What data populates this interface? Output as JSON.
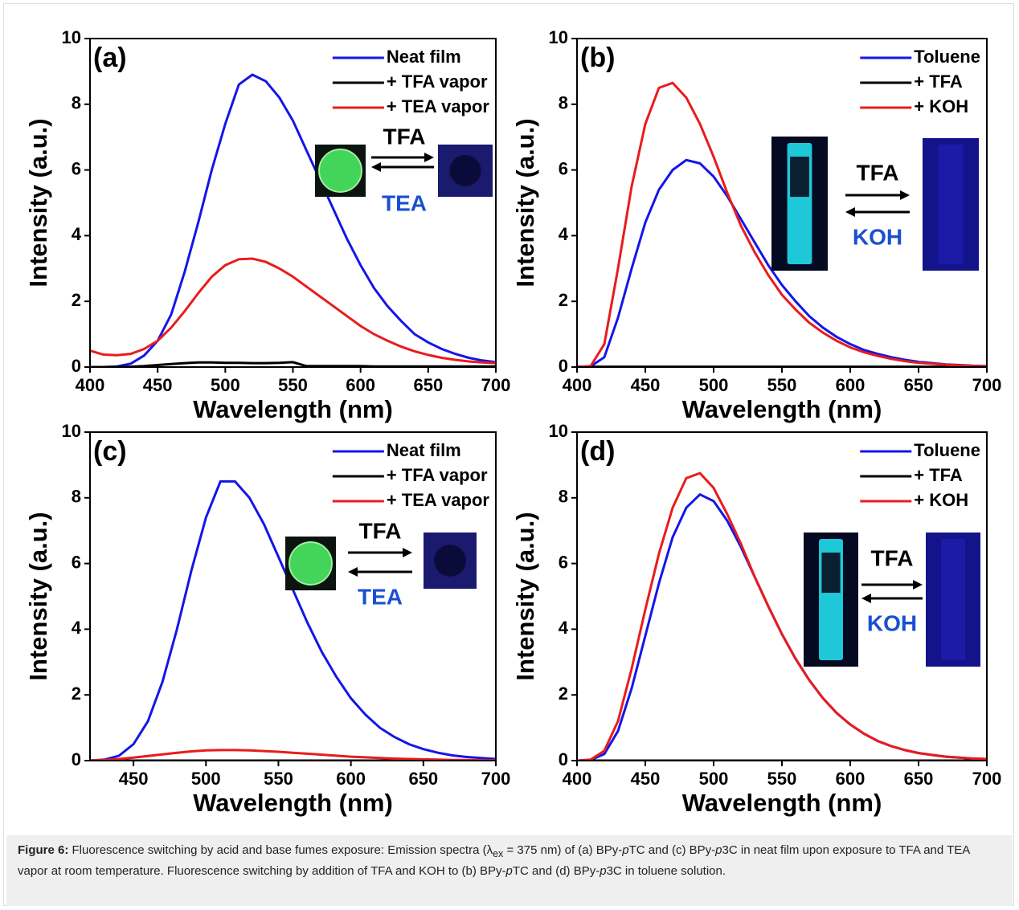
{
  "chart_data": [
    {
      "type": "line",
      "panel_label": "(a)",
      "xlabel": "Wavelength (nm)",
      "ylabel": "Intensity (a.u.)",
      "xlim": [
        400,
        700
      ],
      "xticks": [
        400,
        450,
        500,
        550,
        600,
        650,
        700
      ],
      "ylim": [
        0,
        10
      ],
      "yticks": [
        0,
        2,
        4,
        6,
        8,
        10
      ],
      "legend": "upper right",
      "annotations": [
        "TFA",
        "TEA"
      ],
      "x": [
        400,
        410,
        420,
        430,
        440,
        450,
        460,
        470,
        480,
        490,
        500,
        510,
        520,
        530,
        540,
        550,
        560,
        570,
        580,
        590,
        600,
        610,
        620,
        630,
        640,
        650,
        660,
        670,
        680,
        690,
        700
      ],
      "series": [
        {
          "name": "Neat film",
          "color": "#1515e8",
          "values": [
            0,
            0,
            0.02,
            0.1,
            0.35,
            0.8,
            1.6,
            2.9,
            4.4,
            6.0,
            7.4,
            8.6,
            8.9,
            8.7,
            8.2,
            7.5,
            6.6,
            5.7,
            4.8,
            3.9,
            3.1,
            2.4,
            1.85,
            1.4,
            1.0,
            0.75,
            0.55,
            0.4,
            0.28,
            0.2,
            0.15
          ]
        },
        {
          "name": "+ TFA vapor",
          "color": "#000000",
          "values": [
            0,
            0,
            0,
            0.01,
            0.03,
            0.06,
            0.09,
            0.12,
            0.14,
            0.14,
            0.13,
            0.13,
            0.12,
            0.12,
            0.13,
            0.15,
            0.03,
            0.03,
            0.03,
            0.03,
            0.03,
            0.02,
            0.02,
            0.02,
            0.02,
            0.02,
            0.02,
            0.02,
            0.02,
            0.02,
            0.02
          ]
        },
        {
          "name": "+ TEA vapor",
          "color": "#e81c1c",
          "values": [
            0.5,
            0.38,
            0.36,
            0.4,
            0.55,
            0.8,
            1.2,
            1.7,
            2.25,
            2.75,
            3.1,
            3.28,
            3.3,
            3.2,
            3.0,
            2.75,
            2.45,
            2.15,
            1.85,
            1.55,
            1.25,
            1.0,
            0.8,
            0.62,
            0.48,
            0.37,
            0.28,
            0.22,
            0.17,
            0.14,
            0.12
          ]
        }
      ]
    },
    {
      "type": "line",
      "panel_label": "(b)",
      "xlabel": "Wavelength (nm)",
      "ylabel": "Intensity (a.u.)",
      "xlim": [
        400,
        700
      ],
      "xticks": [
        400,
        450,
        500,
        550,
        600,
        650,
        700
      ],
      "ylim": [
        0,
        10
      ],
      "yticks": [
        0,
        2,
        4,
        6,
        8,
        10
      ],
      "legend": "upper right",
      "annotations": [
        "TFA",
        "KOH"
      ],
      "x": [
        400,
        410,
        420,
        430,
        440,
        450,
        460,
        470,
        480,
        490,
        500,
        510,
        520,
        530,
        540,
        550,
        560,
        570,
        580,
        590,
        600,
        610,
        620,
        630,
        640,
        650,
        660,
        670,
        680,
        690,
        700
      ],
      "series": [
        {
          "name": "Toluene",
          "color": "#1515e8",
          "values": [
            0,
            0.02,
            0.3,
            1.5,
            3.0,
            4.4,
            5.4,
            6.0,
            6.3,
            6.2,
            5.8,
            5.2,
            4.5,
            3.8,
            3.1,
            2.5,
            2.0,
            1.55,
            1.2,
            0.92,
            0.7,
            0.52,
            0.4,
            0.3,
            0.22,
            0.16,
            0.12,
            0.08,
            0.06,
            0.04,
            0.03
          ]
        },
        {
          "name": "+ TFA",
          "color": "#000000",
          "values": [
            0.01,
            0.01,
            0.01,
            0.01,
            0.01,
            0.01,
            0.01,
            0.01,
            0.01,
            0.01,
            0.01,
            0.01,
            0.01,
            0.01,
            0.01,
            0.01,
            0.01,
            0.01,
            0.01,
            0.01,
            0.01,
            0.01,
            0.01,
            0.01,
            0.01,
            0.01,
            0.01,
            0.01,
            0.01,
            0.01,
            0.01
          ]
        },
        {
          "name": "+ KOH",
          "color": "#e81c1c",
          "values": [
            0,
            0.03,
            0.7,
            3.0,
            5.5,
            7.4,
            8.5,
            8.65,
            8.2,
            7.4,
            6.4,
            5.3,
            4.3,
            3.5,
            2.8,
            2.2,
            1.75,
            1.35,
            1.05,
            0.8,
            0.6,
            0.45,
            0.34,
            0.25,
            0.18,
            0.13,
            0.1,
            0.07,
            0.05,
            0.03,
            0.02
          ]
        }
      ]
    },
    {
      "type": "line",
      "panel_label": "(c)",
      "xlabel": "Wavelength (nm)",
      "ylabel": "Intensity (a.u.)",
      "xlim": [
        420,
        700
      ],
      "xticks": [
        450,
        500,
        550,
        600,
        650,
        700
      ],
      "ylim": [
        0,
        10
      ],
      "yticks": [
        0,
        2,
        4,
        6,
        8,
        10
      ],
      "legend": "upper right",
      "annotations": [
        "TFA",
        "TEA"
      ],
      "x": [
        420,
        430,
        440,
        450,
        460,
        470,
        480,
        490,
        500,
        510,
        520,
        530,
        540,
        550,
        560,
        570,
        580,
        590,
        600,
        610,
        620,
        630,
        640,
        650,
        660,
        670,
        680,
        690,
        700
      ],
      "series": [
        {
          "name": "Neat film",
          "color": "#1515e8",
          "values": [
            0,
            0.03,
            0.15,
            0.5,
            1.2,
            2.4,
            4.0,
            5.8,
            7.4,
            8.5,
            8.5,
            8.0,
            7.2,
            6.2,
            5.2,
            4.2,
            3.3,
            2.55,
            1.9,
            1.4,
            1.0,
            0.72,
            0.5,
            0.35,
            0.24,
            0.16,
            0.11,
            0.08,
            0.05
          ]
        },
        {
          "name": "+ TFA vapor",
          "color": "#000000",
          "values": [
            0,
            0,
            0,
            0,
            0,
            0,
            0,
            0,
            0,
            0,
            0,
            0,
            0,
            0,
            0,
            0,
            0,
            0,
            0,
            0,
            0,
            0,
            0,
            0,
            0,
            0,
            0,
            0,
            0
          ]
        },
        {
          "name": "+ TEA vapor",
          "color": "#e81c1c",
          "values": [
            0.01,
            0.02,
            0.05,
            0.09,
            0.14,
            0.19,
            0.24,
            0.28,
            0.31,
            0.32,
            0.32,
            0.31,
            0.29,
            0.27,
            0.24,
            0.21,
            0.18,
            0.15,
            0.12,
            0.1,
            0.08,
            0.06,
            0.05,
            0.04,
            0.03,
            0.02,
            0.02,
            0.01,
            0.01
          ]
        }
      ]
    },
    {
      "type": "line",
      "panel_label": "(d)",
      "xlabel": "Wavelength (nm)",
      "ylabel": "Intensity (a.u.)",
      "xlim": [
        400,
        700
      ],
      "xticks": [
        400,
        450,
        500,
        550,
        600,
        650,
        700
      ],
      "ylim": [
        0,
        10
      ],
      "yticks": [
        0,
        2,
        4,
        6,
        8,
        10
      ],
      "legend": "upper right",
      "annotations": [
        "TFA",
        "KOH"
      ],
      "x": [
        400,
        410,
        420,
        430,
        440,
        450,
        460,
        470,
        480,
        490,
        500,
        510,
        520,
        530,
        540,
        550,
        560,
        570,
        580,
        590,
        600,
        610,
        620,
        630,
        640,
        650,
        660,
        670,
        680,
        690,
        700
      ],
      "series": [
        {
          "name": "Toluene",
          "color": "#1515e8",
          "values": [
            0,
            0.02,
            0.2,
            0.9,
            2.2,
            3.8,
            5.4,
            6.8,
            7.7,
            8.1,
            7.9,
            7.3,
            6.5,
            5.6,
            4.7,
            3.85,
            3.1,
            2.45,
            1.9,
            1.45,
            1.1,
            0.82,
            0.6,
            0.44,
            0.32,
            0.23,
            0.17,
            0.12,
            0.09,
            0.06,
            0.05
          ]
        },
        {
          "name": "+ TFA",
          "color": "#000000",
          "values": [
            0,
            0,
            0,
            0,
            0,
            0,
            0,
            0,
            0,
            0,
            0,
            0,
            0,
            0,
            0,
            0,
            0,
            0,
            0,
            0,
            0,
            0,
            0,
            0,
            0,
            0,
            0,
            0,
            0,
            0,
            0
          ]
        },
        {
          "name": "+ KOH",
          "color": "#e81c1c",
          "values": [
            0,
            0.03,
            0.3,
            1.2,
            2.8,
            4.6,
            6.3,
            7.7,
            8.6,
            8.75,
            8.3,
            7.5,
            6.6,
            5.6,
            4.7,
            3.85,
            3.1,
            2.45,
            1.9,
            1.45,
            1.1,
            0.82,
            0.6,
            0.44,
            0.32,
            0.23,
            0.17,
            0.12,
            0.09,
            0.06,
            0.05
          ]
        }
      ]
    }
  ],
  "caption": {
    "label": "Figure 6:",
    "parts": [
      "Fluorescence switching by acid and base fumes exposure: Emission spectra (λ",
      "ex",
      " = 375 nm) of (a) BPy-",
      "p",
      "TC and (c) BPy-",
      "p",
      "3C in neat film upon exposure to TFA and TEA vapor at room temperature. Fluorescence switching by addition of TFA and KOH to (b) BPy-",
      "p",
      "TC and (d) BPy-",
      "p",
      "3C in toluene solution."
    ]
  }
}
